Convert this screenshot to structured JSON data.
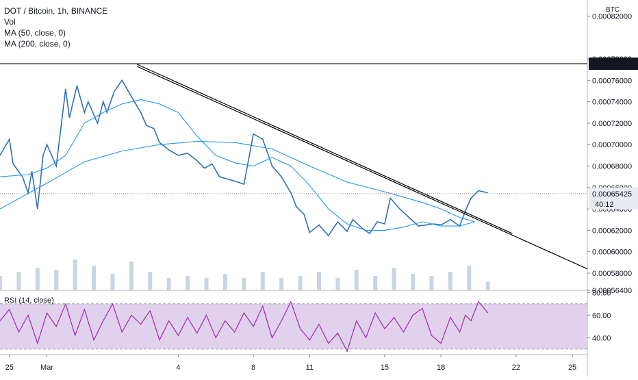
{
  "header": {
    "symbol": "DOT / Bitcoin, 1h, BINANCE",
    "vol": "Vol",
    "ma50": "MA (50, close, 0)",
    "ma200": "MA (200, close, 0)",
    "rsi": "RSI (14, close)"
  },
  "axis": {
    "unit": "BTC",
    "price_ticks": [
      "0.00082000",
      "0.00078000",
      "0.00076000",
      "0.00074000",
      "0.00072000",
      "0.00070000",
      "0.00068000",
      "0.00066000",
      "0.00064000",
      "0.00062000",
      "0.00060000",
      "0.00058000",
      "0.00056400"
    ],
    "rsi_ticks": [
      "80.00",
      "60.00",
      "40.00"
    ],
    "x_ticks": [
      "25",
      "Mar",
      "4",
      "8",
      "11",
      "15",
      "18",
      "22",
      "25"
    ]
  },
  "markers": {
    "resistance_price": "0.00077553",
    "last_price": "0.00065425",
    "countdown": "40:12"
  },
  "colors": {
    "candle": "#2f6fb7",
    "ma50": "#2196f3",
    "ma200": "#2196f3",
    "rsi_line": "#9c27b0",
    "rsi_band": "#e1d1ec",
    "trendline": "#000000",
    "volume": "#c9d5e3",
    "label_bg": "#131722",
    "last_bg": "#e8ebf0"
  },
  "chart_data": {
    "type": "line",
    "x_range_days": [
      -5.5,
      25.8
    ],
    "x_tick_days": [
      -5,
      -3,
      4,
      8,
      11,
      15,
      18,
      22,
      25
    ],
    "price_range": [
      0.000564,
      0.000835
    ],
    "price": {
      "x": [
        -5.5,
        -5,
        -4.8,
        -4.3,
        -4,
        -3.8,
        -3.5,
        -3.2,
        -3,
        -2.5,
        -2,
        -1.8,
        -1.4,
        -1,
        -0.8,
        -0.3,
        0,
        0.2,
        0.6,
        1,
        1.4,
        2,
        2.3,
        2.7,
        3,
        3.5,
        4,
        4.5,
        5,
        5.4,
        5.8,
        6.2,
        7,
        7.5,
        8,
        8.5,
        9,
        9.5,
        10,
        10.3,
        10.7,
        11,
        11.5,
        12,
        12.5,
        13,
        13.3,
        13.8,
        14.2,
        14.6,
        15,
        15.3,
        15.8,
        16.3,
        16.8,
        17.2,
        17.6,
        18,
        18.5,
        19,
        19.3,
        19.6,
        20,
        20.5
      ],
      "y": [
        0.00069,
        0.000705,
        0.000682,
        0.00067,
        0.000655,
        0.000675,
        0.00064,
        0.00069,
        0.0007,
        0.00068,
        0.000752,
        0.000725,
        0.000755,
        0.00073,
        0.00074,
        0.00072,
        0.00074,
        0.00073,
        0.00075,
        0.00076,
        0.000748,
        0.00073,
        0.000718,
        0.000715,
        0.000702,
        0.000695,
        0.00069,
        0.000692,
        0.000685,
        0.000678,
        0.000682,
        0.00067,
        0.000666,
        0.000663,
        0.00071,
        0.000705,
        0.00068,
        0.00067,
        0.000655,
        0.000642,
        0.000635,
        0.000618,
        0.000625,
        0.000615,
        0.000628,
        0.000619,
        0.00063,
        0.000622,
        0.000617,
        0.000628,
        0.000626,
        0.00065,
        0.00064,
        0.000632,
        0.000624,
        0.000625,
        0.000626,
        0.000625,
        0.00063,
        0.000624,
        0.000638,
        0.00065,
        0.000657,
        0.000655
      ]
    },
    "ma50": {
      "x": [
        -5.5,
        -4,
        -3,
        -2,
        -1,
        0,
        1,
        2,
        3,
        4,
        5,
        6,
        7,
        8,
        9,
        10,
        11,
        12,
        13,
        14,
        15,
        16,
        17,
        18,
        19,
        19.8
      ],
      "y": [
        0.00067,
        0.000672,
        0.000678,
        0.00069,
        0.00072,
        0.00073,
        0.000738,
        0.000742,
        0.000738,
        0.00073,
        0.000708,
        0.00069,
        0.000683,
        0.00068,
        0.000688,
        0.00068,
        0.000662,
        0.00064,
        0.000626,
        0.00062,
        0.00062,
        0.000623,
        0.000628,
        0.000624,
        0.000624,
        0.000628
      ]
    },
    "ma200": {
      "x": [
        -5.5,
        -3,
        -1,
        1,
        3,
        5,
        7,
        9,
        11,
        13,
        15,
        17,
        18,
        19,
        19.8
      ],
      "y": [
        0.00064,
        0.000664,
        0.000684,
        0.000694,
        0.0007,
        0.000703,
        0.000702,
        0.000696,
        0.00068,
        0.000665,
        0.000656,
        0.000646,
        0.00064,
        0.000632,
        0.000628
      ]
    },
    "trendlines": [
      {
        "x": [
          1.8,
          21.8
        ],
        "y": [
          0.000775,
          0.000617
        ]
      },
      {
        "x": [
          1.8,
          25.8
        ],
        "y": [
          0.000773,
          0.000584
        ]
      }
    ],
    "resistance_level": 0.00077553,
    "rsi_range": [
      25,
      82
    ],
    "rsi_band": [
      30,
      70
    ],
    "rsi": {
      "x": [
        -5.5,
        -5,
        -4.5,
        -4,
        -3.5,
        -3,
        -2.5,
        -2,
        -1.5,
        -1,
        -0.5,
        0,
        0.5,
        1,
        1.5,
        2,
        2.5,
        3,
        3.5,
        4,
        4.5,
        5,
        5.5,
        6,
        6.5,
        7,
        7.5,
        8,
        8.5,
        9,
        9.5,
        10,
        10.5,
        11,
        11.5,
        12,
        12.5,
        13,
        13.5,
        14,
        14.5,
        15,
        15.5,
        16,
        16.5,
        17,
        17.5,
        18,
        18.5,
        19,
        19.3,
        19.6,
        20,
        20.5
      ],
      "y": [
        55,
        65,
        45,
        60,
        35,
        62,
        50,
        70,
        42,
        65,
        38,
        55,
        70,
        45,
        60,
        52,
        64,
        38,
        55,
        42,
        58,
        44,
        60,
        40,
        55,
        45,
        62,
        50,
        68,
        40,
        55,
        72,
        48,
        38,
        52,
        35,
        44,
        28,
        55,
        40,
        62,
        48,
        58,
        45,
        60,
        66,
        42,
        35,
        58,
        45,
        60,
        55,
        72,
        62
      ]
    },
    "volume": {
      "x": [
        -5.5,
        -4.5,
        -3.5,
        -2.5,
        -1.5,
        -0.5,
        0.5,
        1.5,
        2.5,
        3.5,
        4.5,
        5.5,
        6.5,
        7.5,
        8.5,
        9.5,
        10.5,
        11.5,
        12.5,
        13.5,
        14.5,
        15.5,
        16.5,
        17.5,
        18.5,
        19.5,
        20.5
      ],
      "y": [
        0.35,
        0.45,
        0.55,
        0.5,
        0.75,
        0.6,
        0.4,
        0.7,
        0.45,
        0.3,
        0.35,
        0.3,
        0.4,
        0.3,
        0.45,
        0.3,
        0.35,
        0.45,
        0.3,
        0.5,
        0.35,
        0.55,
        0.4,
        0.35,
        0.45,
        0.6,
        0.2
      ]
    }
  }
}
